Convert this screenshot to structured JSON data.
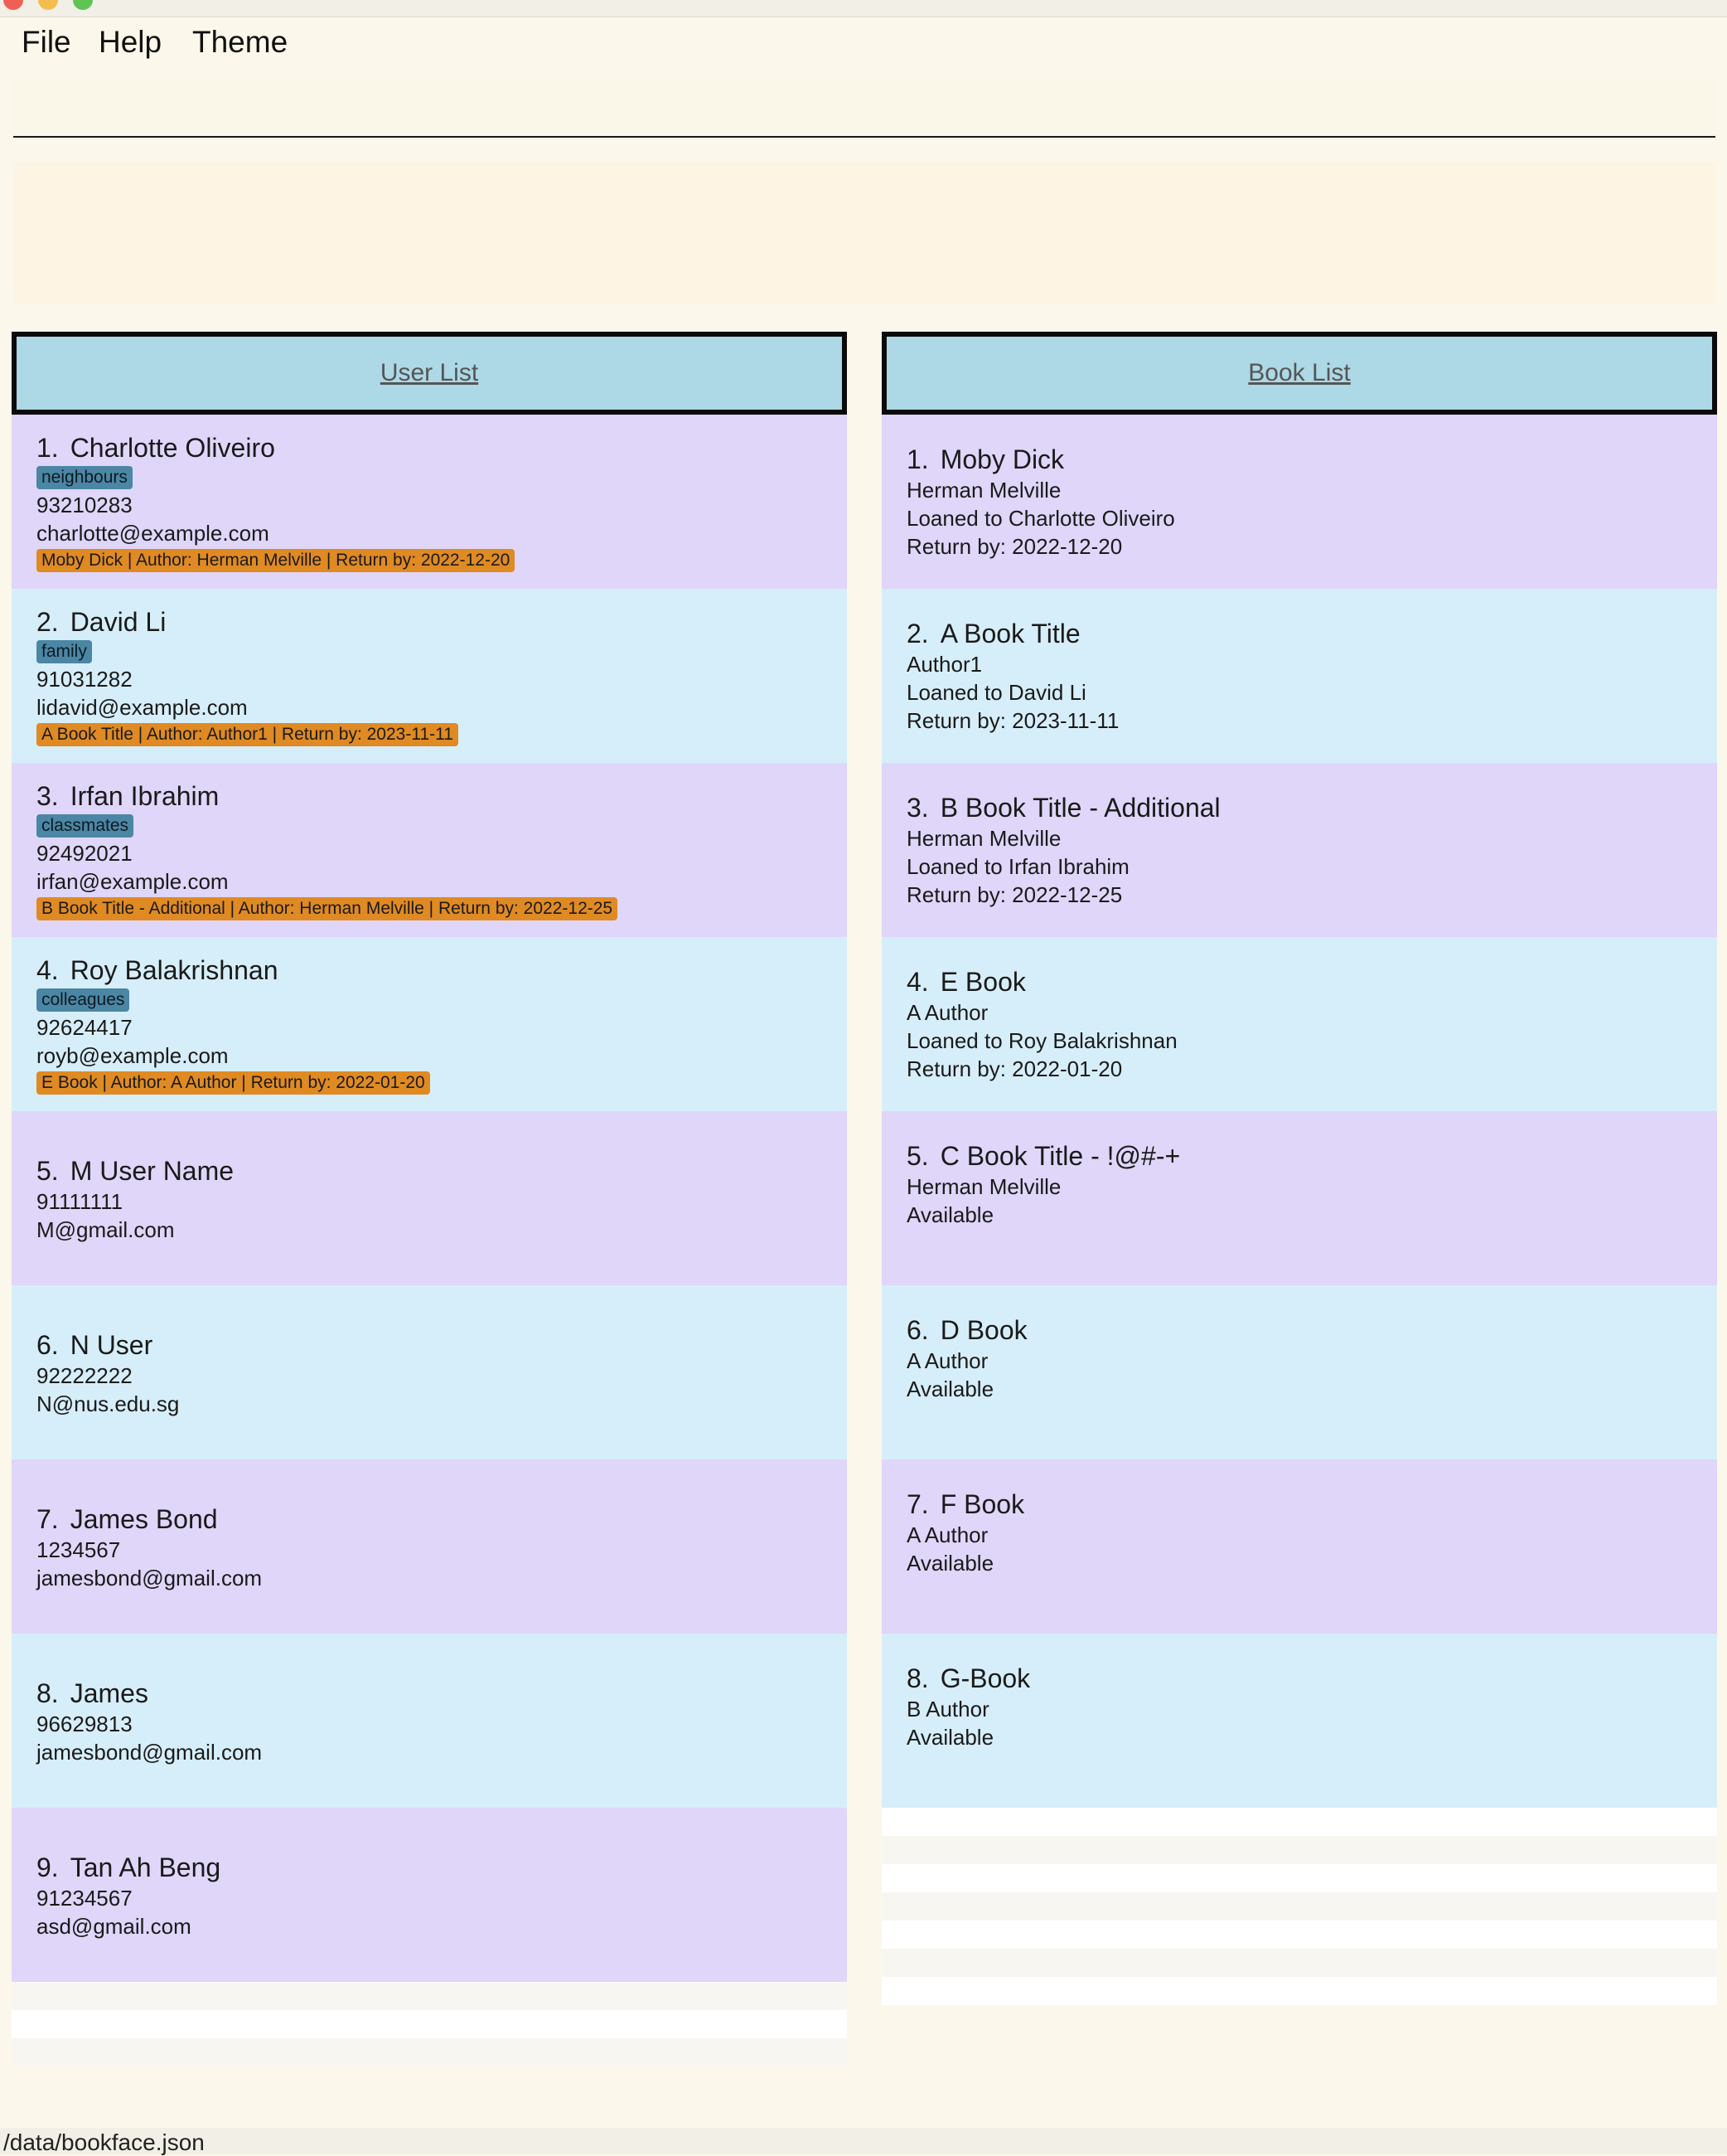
{
  "window": {
    "title": ""
  },
  "menu": {
    "file": "File",
    "help": "Help",
    "theme": "Theme"
  },
  "command_box": {
    "value": "",
    "placeholder": ""
  },
  "result_display": {
    "text": ""
  },
  "user_list": {
    "header": "User List",
    "users": [
      {
        "index": "1.",
        "name": "Charlotte Oliveiro",
        "tag": "neighbours",
        "phone": "93210283",
        "email": "charlotte@example.com",
        "loan": "Moby Dick | Author: Herman Melville | Return by: 2022-12-20"
      },
      {
        "index": "2.",
        "name": "David Li",
        "tag": "family",
        "phone": "91031282",
        "email": "lidavid@example.com",
        "loan": "A Book Title | Author: Author1 | Return by: 2023-11-11"
      },
      {
        "index": "3.",
        "name": "Irfan Ibrahim",
        "tag": "classmates",
        "phone": "92492021",
        "email": "irfan@example.com",
        "loan": "B Book Title - Additional | Author: Herman Melville | Return by: 2022-12-25"
      },
      {
        "index": "4.",
        "name": "Roy Balakrishnan",
        "tag": "colleagues",
        "phone": "92624417",
        "email": "royb@example.com",
        "loan": "E Book | Author: A Author | Return by: 2022-01-20"
      },
      {
        "index": "5.",
        "name": "M User Name",
        "phone": "91111111",
        "email": "M@gmail.com"
      },
      {
        "index": "6.",
        "name": "N User",
        "phone": "92222222",
        "email": "N@nus.edu.sg"
      },
      {
        "index": "7.",
        "name": "James Bond",
        "phone": "1234567",
        "email": "jamesbond@gmail.com"
      },
      {
        "index": "8.",
        "name": "James",
        "phone": "96629813",
        "email": "jamesbond@gmail.com"
      },
      {
        "index": "9.",
        "name": "Tan Ah Beng",
        "phone": "91234567",
        "email": "asd@gmail.com"
      }
    ]
  },
  "book_list": {
    "header": "Book List",
    "books": [
      {
        "index": "1.",
        "title": "Moby Dick",
        "author": "Herman Melville",
        "status": "Loaned to Charlotte Oliveiro",
        "return_by": "Return by: 2022-12-20"
      },
      {
        "index": "2.",
        "title": "A Book Title",
        "author": "Author1",
        "status": "Loaned to David Li",
        "return_by": "Return by: 2023-11-11"
      },
      {
        "index": "3.",
        "title": "B Book Title - Additional",
        "author": "Herman Melville",
        "status": "Loaned to Irfan Ibrahim",
        "return_by": "Return by: 2022-12-25"
      },
      {
        "index": "4.",
        "title": "E Book",
        "author": "A Author",
        "status": "Loaned to Roy Balakrishnan",
        "return_by": "Return by: 2022-01-20"
      },
      {
        "index": "5.",
        "title": "C Book Title - !@#-+",
        "author": "Herman Melville",
        "status": "Available"
      },
      {
        "index": "6.",
        "title": "D Book",
        "author": "A Author",
        "status": "Available"
      },
      {
        "index": "7.",
        "title": "F Book",
        "author": "A Author",
        "status": "Available"
      },
      {
        "index": "8.",
        "title": "G-Book",
        "author": "B Author",
        "status": "Available"
      }
    ]
  },
  "status_bar": {
    "path": "/data/bookface.json"
  }
}
